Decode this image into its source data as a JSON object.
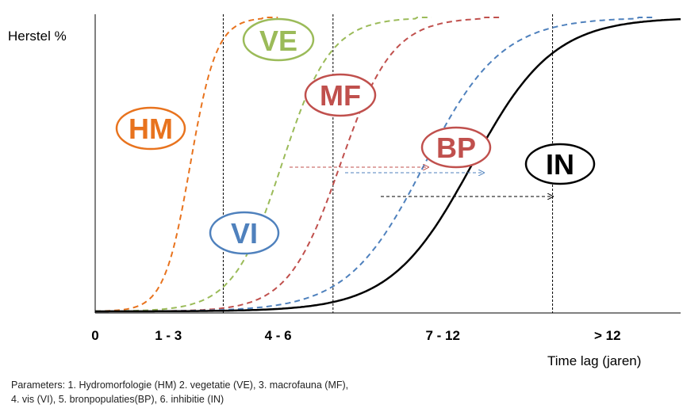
{
  "chart_data": {
    "type": "line",
    "ylabel": "Herstel %",
    "xlabel": "Time lag (jaren)",
    "x_ticks": [
      {
        "label": "0",
        "pos": 0
      },
      {
        "label": "1 - 3",
        "pos": 2
      },
      {
        "label": "4 - 6",
        "pos": 5
      },
      {
        "label": "7 - 12",
        "pos": 9.5
      },
      {
        "label": "> 12",
        "pos": 14
      }
    ],
    "dividers": [
      3.5,
      6.5,
      12.5
    ],
    "xlim": [
      0,
      16
    ],
    "ylim": [
      0,
      100
    ],
    "series": [
      {
        "name": "HM",
        "color": "#e8731e",
        "style": "dashed",
        "midpoint": 2.6,
        "steepness": 2.8
      },
      {
        "name": "VE",
        "color": "#9bbb59",
        "style": "dashed",
        "midpoint": 5.1,
        "steepness": 1.5
      },
      {
        "name": "MF",
        "color": "#c0504d",
        "style": "dashed",
        "midpoint": 6.7,
        "steepness": 1.4
      },
      {
        "name": "VI",
        "color": "#4f81bd",
        "style": "dashed",
        "midpoint": 9.0,
        "steepness": 0.95
      },
      {
        "name": "IN",
        "color": "#000000",
        "style": "solid",
        "midpoint": 10.3,
        "steepness": 0.9
      }
    ],
    "bubbles": [
      {
        "label": "HM",
        "color": "#e8731e"
      },
      {
        "label": "VE",
        "color": "#9bbb59"
      },
      {
        "label": "MF",
        "color": "#c0504d"
      },
      {
        "label": "BP",
        "color": "#c0504d"
      },
      {
        "label": "IN",
        "color": "#000000"
      },
      {
        "label": "VI",
        "color": "#4f81bd"
      }
    ]
  },
  "caption": {
    "line1": "Parameters: 1. Hydromorfologie (HM) 2. vegetatie (VE), 3. macrofauna (MF),",
    "line2": "4. vis (VI), 5. bronpopulaties(BP), 6. inhibitie (IN)"
  }
}
